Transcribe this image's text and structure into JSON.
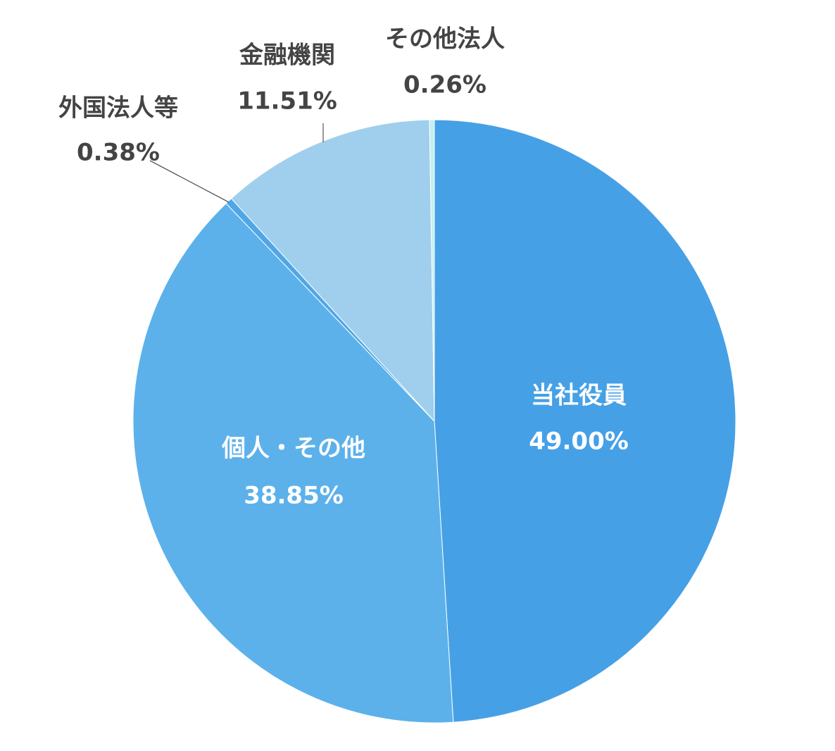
{
  "chart_data": {
    "type": "pie",
    "categories": [
      "当社役員",
      "個人・その他",
      "外国法人等",
      "金融機関",
      "その他法人"
    ],
    "values": [
      49.0,
      38.85,
      0.38,
      11.51,
      0.26
    ],
    "value_labels": [
      "49.00%",
      "38.85%",
      "0.38%",
      "11.51%",
      "0.26%"
    ],
    "colors": [
      "#46a0e6",
      "#5cb1ea",
      "#4fa7e8",
      "#9fcfec",
      "#c6eef0"
    ]
  }
}
